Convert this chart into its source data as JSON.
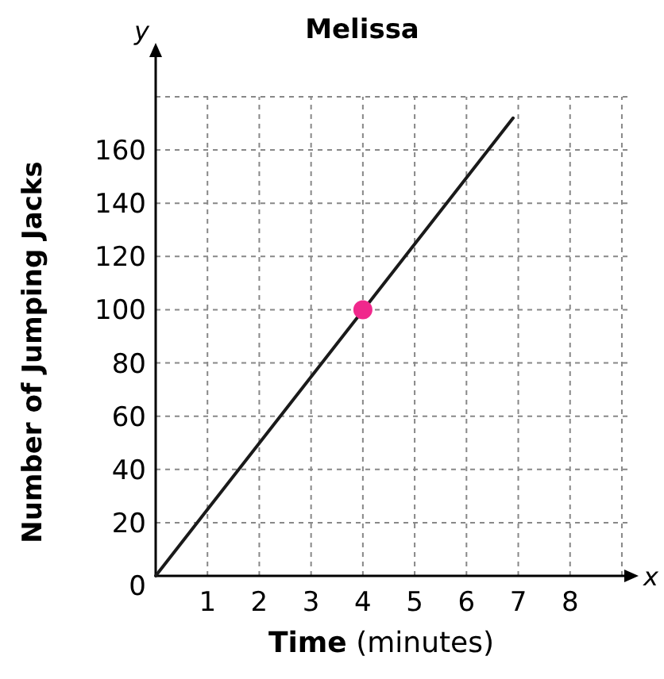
{
  "chart_data": {
    "type": "line",
    "title": "Melissa",
    "xlabel": "Time (minutes)",
    "ylabel": "Number of Jumping Jacks",
    "annotations": [
      "x",
      "y"
    ],
    "series": [
      {
        "color": "#1a1a1a",
        "x": [
          0,
          6.9
        ],
        "values": [
          0,
          172
        ],
        "marker": "none"
      },
      {
        "type": "scatter",
        "color": "#f0288c",
        "x": [
          4
        ],
        "values": [
          100
        ],
        "marker": "circle"
      }
    ],
    "xlim": [
      0,
      9.2
    ],
    "ylim": [
      0,
      180
    ],
    "xticks": [
      {
        "value": 0,
        "label": null
      },
      1,
      2,
      3,
      4,
      5,
      6,
      7,
      8,
      {
        "value": 9,
        "label": null
      }
    ],
    "yticks": [
      0,
      20,
      40,
      60,
      80,
      100,
      120,
      140,
      160,
      {
        "value": 180,
        "label": null
      }
    ],
    "grid": true,
    "line_style": "solid"
  }
}
